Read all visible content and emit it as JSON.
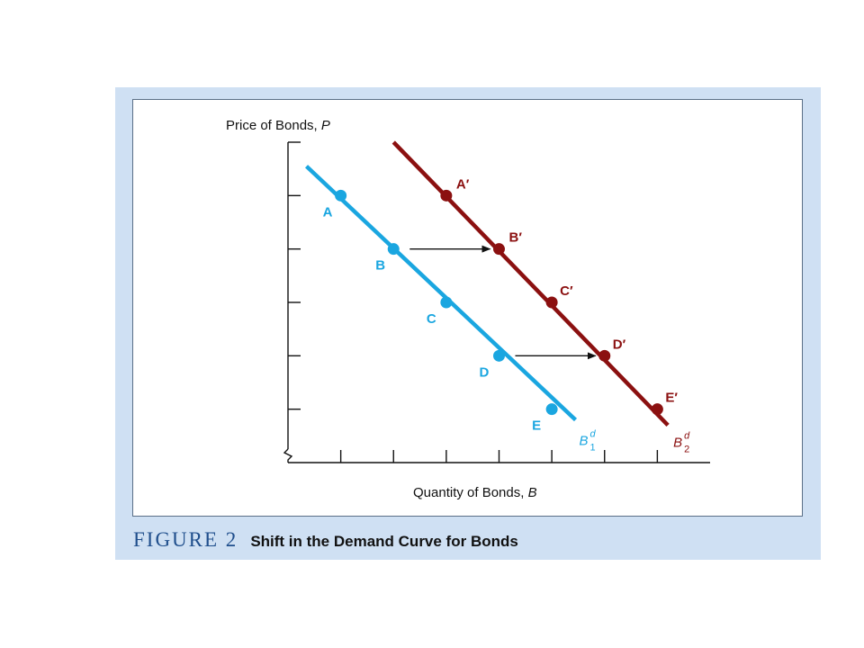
{
  "figure": {
    "label": "FIGURE 2",
    "title": "Shift in the Demand Curve for Bonds"
  },
  "colors": {
    "curve1": "#1aa6e0",
    "curve2": "#8b1010",
    "panel": "#cfe0f3",
    "caption_label": "#1f4e8c"
  },
  "chart_data": {
    "type": "line",
    "xlabel_main": "Quantity of Bonds, ",
    "xlabel_var": "B",
    "ylabel_main": "Price of Bonds, ",
    "ylabel_var": "P",
    "xlim": [
      0,
      8
    ],
    "ylim": [
      0,
      6
    ],
    "x_ticks": [
      1,
      2,
      3,
      4,
      5,
      6,
      7
    ],
    "y_ticks": [
      1,
      2,
      3,
      4,
      5
    ],
    "axis_break": "y",
    "series": [
      {
        "name_main": "B",
        "name_sup": "d",
        "name_sub": "1",
        "color": "#1aa6e0",
        "line": [
          [
            0.35,
            5.55
          ],
          [
            5.45,
            0.8
          ]
        ],
        "points": [
          {
            "label": "A",
            "x": 1,
            "y": 5
          },
          {
            "label": "B",
            "x": 2,
            "y": 4
          },
          {
            "label": "C",
            "x": 3,
            "y": 3
          },
          {
            "label": "D",
            "x": 4,
            "y": 2
          },
          {
            "label": "E",
            "x": 5,
            "y": 1
          }
        ]
      },
      {
        "name_main": "B",
        "name_sup": "d",
        "name_sub": "2",
        "color": "#8b1010",
        "line": [
          [
            2,
            6
          ],
          [
            7.2,
            0.7
          ]
        ],
        "points": [
          {
            "label": "A′",
            "x": 3,
            "y": 5
          },
          {
            "label": "B′",
            "x": 4,
            "y": 4
          },
          {
            "label": "C′",
            "x": 5,
            "y": 3
          },
          {
            "label": "D′",
            "x": 6,
            "y": 2
          },
          {
            "label": "E′",
            "x": 7,
            "y": 1
          }
        ]
      }
    ],
    "arrows": [
      {
        "from": [
          2,
          4
        ],
        "to": [
          4,
          4
        ]
      },
      {
        "from": [
          4,
          2
        ],
        "to": [
          6,
          2
        ]
      }
    ]
  }
}
